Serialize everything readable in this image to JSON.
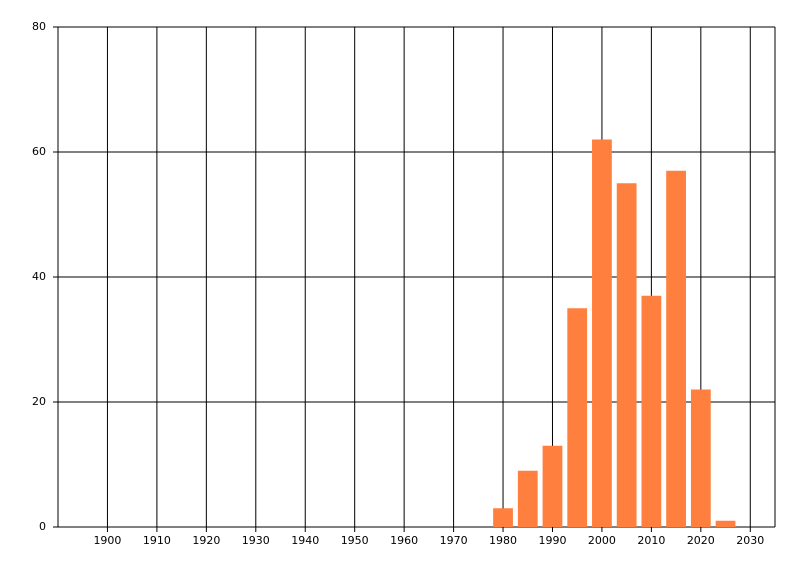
{
  "chart_data": {
    "type": "bar",
    "x": [
      1980,
      1985,
      1990,
      1995,
      2000,
      2005,
      2010,
      2015,
      2020,
      2025
    ],
    "values": [
      3,
      9,
      13,
      35,
      62,
      55,
      37,
      57,
      22,
      1
    ],
    "color": "#ff7f3f",
    "xlim": [
      1890,
      2035
    ],
    "xticks": [
      1900,
      1910,
      1920,
      1930,
      1940,
      1950,
      1960,
      1970,
      1980,
      1990,
      2000,
      2010,
      2020,
      2030
    ],
    "ylim": [
      0,
      80
    ],
    "yticks": [
      0,
      20,
      40,
      60,
      80
    ],
    "grid": true
  }
}
